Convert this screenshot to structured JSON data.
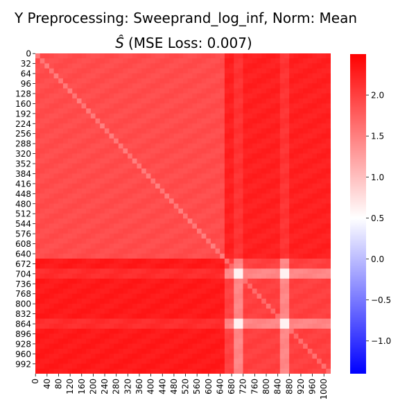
{
  "chart_data": {
    "type": "heatmap",
    "title_line1": "Y Preprocessing: Sweeprand_log_inf, Norm: Mean",
    "title_line2_symbol": "Ŝ",
    "title_line2_rest": "(MSE Loss: 0.007)",
    "matrix_size": 1024,
    "y_tick_labels": [
      "0",
      "32",
      "64",
      "96",
      "128",
      "160",
      "192",
      "224",
      "256",
      "288",
      "320",
      "352",
      "384",
      "416",
      "448",
      "480",
      "512",
      "544",
      "576",
      "608",
      "640",
      "672",
      "704",
      "736",
      "768",
      "800",
      "832",
      "864",
      "896",
      "928",
      "960",
      "992"
    ],
    "x_tick_labels": [
      "0",
      "40",
      "80",
      "120",
      "160",
      "200",
      "240",
      "280",
      "320",
      "360",
      "400",
      "440",
      "480",
      "520",
      "560",
      "600",
      "640",
      "680",
      "720",
      "760",
      "800",
      "840",
      "880",
      "920",
      "960",
      "1000"
    ],
    "colorbar": {
      "vmin": -1.4,
      "vmax": 2.5,
      "center": 0.5,
      "ticks": [
        "-1.0",
        "-0.5",
        "0.0",
        "0.5",
        "1.0",
        "1.5",
        "2.0"
      ],
      "tick_values": [
        -1.0,
        -0.5,
        0.0,
        0.5,
        1.0,
        1.5,
        2.0
      ],
      "colormap": "bwr",
      "low_color": "#0000ff",
      "mid_color": "#ffffff",
      "high_color": "#ff0000"
    },
    "approx_pattern": {
      "base_value": 2.1,
      "upper_left_block_value": 1.9,
      "upper_right_block_value": 2.25,
      "lower_left_block_value": 2.3,
      "lower_right_block_value": 2.0,
      "block_split_index": 660,
      "bright_rows": [
        700,
        860
      ],
      "bright_cols": [
        700,
        860
      ],
      "hotspot_value": 0.6
    }
  }
}
